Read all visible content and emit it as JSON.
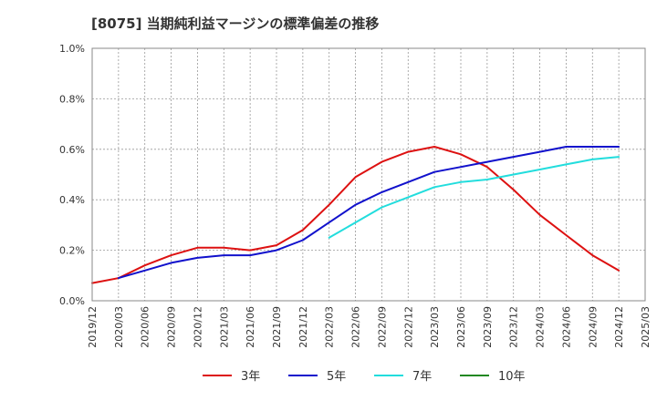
{
  "chart_data": {
    "type": "line",
    "title": "[8075]  当期純利益マージンの標準偏差の推移",
    "xlabel": "",
    "ylabel": "",
    "x": [
      "2019/12",
      "2020/03",
      "2020/06",
      "2020/09",
      "2020/12",
      "2021/03",
      "2021/06",
      "2021/09",
      "2021/12",
      "2022/03",
      "2022/06",
      "2022/09",
      "2022/12",
      "2023/03",
      "2023/06",
      "2023/09",
      "2023/12",
      "2024/03",
      "2024/06",
      "2024/09",
      "2024/12",
      "2025/03"
    ],
    "ylim": [
      0,
      1.0
    ],
    "yticks": [
      "0.0%",
      "0.2%",
      "0.4%",
      "0.6%",
      "0.8%",
      "1.0%"
    ],
    "grid": true,
    "legend_position": "bottom",
    "series": [
      {
        "name": "3年",
        "color": "#dd1111",
        "values": [
          0.07,
          0.09,
          0.14,
          0.18,
          0.21,
          0.21,
          0.2,
          0.22,
          0.28,
          0.38,
          0.49,
          0.55,
          0.59,
          0.61,
          0.58,
          0.53,
          0.44,
          0.34,
          0.26,
          0.18,
          0.12,
          null
        ]
      },
      {
        "name": "5年",
        "color": "#1111cc",
        "values": [
          null,
          0.09,
          0.12,
          0.15,
          0.17,
          0.18,
          0.18,
          0.2,
          0.24,
          0.31,
          0.38,
          0.43,
          0.47,
          0.51,
          0.53,
          0.55,
          0.57,
          0.59,
          0.61,
          0.61,
          0.61,
          null
        ]
      },
      {
        "name": "7年",
        "color": "#22dddd",
        "values": [
          null,
          null,
          null,
          null,
          null,
          null,
          null,
          null,
          null,
          0.25,
          0.31,
          0.37,
          0.41,
          0.45,
          0.47,
          0.48,
          0.5,
          0.52,
          0.54,
          0.56,
          0.57,
          null
        ]
      },
      {
        "name": "10年",
        "color": "#228822",
        "values": [
          null,
          null,
          null,
          null,
          null,
          null,
          null,
          null,
          null,
          null,
          null,
          null,
          null,
          null,
          null,
          null,
          null,
          null,
          null,
          null,
          null,
          null
        ]
      }
    ]
  }
}
